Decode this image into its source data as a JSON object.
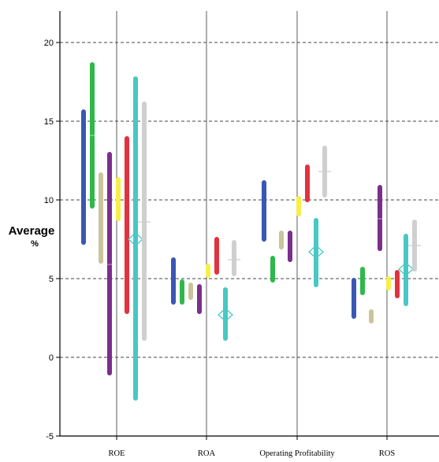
{
  "chart_data": {
    "type": "range-bar",
    "ylabel": "Average",
    "yunit": "%",
    "ylim": [
      -5,
      22
    ],
    "yticks": [
      -5,
      0,
      5,
      10,
      15,
      20
    ],
    "categories": [
      "ROE",
      "ROA",
      "Operating Profitability",
      "ROS"
    ],
    "grid": {
      "horizontal": "dashed",
      "vertical": "solid"
    },
    "series": [
      {
        "color": "#3a57b3",
        "ranges": [
          [
            7.3,
            15.6
          ],
          [
            3.5,
            6.2
          ],
          [
            7.5,
            11.1
          ],
          [
            2.6,
            4.9
          ]
        ],
        "mid": [
          null,
          null,
          null,
          null
        ]
      },
      {
        "color": "#2fb84a",
        "ranges": [
          [
            9.6,
            18.6
          ],
          [
            3.5,
            4.8
          ],
          [
            4.9,
            6.3
          ],
          [
            4.1,
            5.6
          ]
        ],
        "mid": [
          14.1,
          null,
          null,
          null
        ]
      },
      {
        "color": "#c9c59a",
        "ranges": [
          [
            6.1,
            11.6
          ],
          [
            3.8,
            4.6
          ],
          [
            7.0,
            7.9
          ],
          [
            2.3,
            2.9
          ]
        ],
        "mid": [
          null,
          null,
          null,
          null
        ]
      },
      {
        "color": "#7b2e8c",
        "ranges": [
          [
            -1.0,
            12.9
          ],
          [
            2.9,
            4.5
          ],
          [
            6.2,
            7.9
          ],
          [
            6.9,
            10.8
          ]
        ],
        "mid": [
          5.9,
          null,
          null,
          8.8
        ]
      },
      {
        "color": "#f6ef4a",
        "ranges": [
          [
            8.8,
            11.3
          ],
          [
            5.2,
            5.8
          ],
          [
            9.1,
            10.1
          ],
          [
            4.4,
            5.0
          ]
        ],
        "mid": [
          null,
          null,
          null,
          null
        ]
      },
      {
        "color": "#e3313f",
        "ranges": [
          [
            2.9,
            13.9
          ],
          [
            5.4,
            7.5
          ],
          [
            10.0,
            12.1
          ],
          [
            3.9,
            5.4
          ]
        ],
        "mid": [
          null,
          null,
          null,
          null
        ]
      },
      {
        "color": "#48c8c4",
        "ranges": [
          [
            -2.6,
            17.7
          ],
          [
            1.2,
            4.3
          ],
          [
            4.6,
            8.7
          ],
          [
            3.4,
            7.7
          ]
        ],
        "mid": [
          7.5,
          2.7,
          6.7,
          5.6
        ],
        "marker": "diamond"
      },
      {
        "color": "#cfcfcf",
        "ranges": [
          [
            1.2,
            16.1
          ],
          [
            5.3,
            7.3
          ],
          [
            10.3,
            13.3
          ],
          [
            5.6,
            8.6
          ]
        ],
        "mid": [
          8.6,
          6.2,
          11.8,
          7.1
        ],
        "marker": "plus"
      }
    ]
  }
}
